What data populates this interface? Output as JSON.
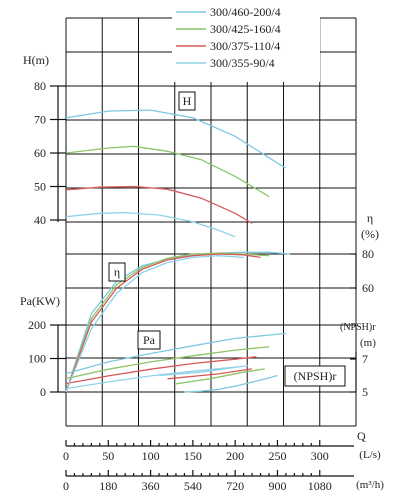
{
  "chart_data": {
    "type": "line",
    "legend": {
      "position": "top-right",
      "entries": [
        {
          "name": "300/460-200/4",
          "color": "#7ec9df"
        },
        {
          "name": "300/425-160/4",
          "color": "#8ec46a"
        },
        {
          "name": "300/375-110/4",
          "color": "#d55a5a"
        },
        {
          "name": "300/355-90/4",
          "color": "#8fd2e8"
        }
      ]
    },
    "x_axis": {
      "label": "Q",
      "unit_ls": "(L/s)",
      "unit_m3h": "(m³/h)",
      "ticks_ls": [
        0,
        50,
        100,
        150,
        200,
        250,
        300
      ],
      "ticks_m3h": [
        "0",
        "180",
        "360",
        "540",
        "720",
        "900",
        "1080"
      ],
      "range": [
        0,
        300
      ]
    },
    "h_axis": {
      "label": "H(m)",
      "range": [
        30,
        80
      ],
      "ticks": [
        40,
        50,
        60,
        70,
        80
      ],
      "panel_label": "H"
    },
    "eta_axis": {
      "label": "η",
      "unit": "(%)",
      "ticks": [
        60,
        80
      ],
      "range": [
        50,
        90
      ],
      "panel_label": "η"
    },
    "pa_axis": {
      "label": "Pa(KW)",
      "range": [
        0,
        200
      ],
      "ticks": [
        0,
        100,
        200
      ],
      "panel_label": "Pa"
    },
    "npsh_axis": {
      "label": "(NPSH)r",
      "unit": "(m)",
      "ticks": [
        5,
        7
      ],
      "range": [
        4.5,
        7.5
      ],
      "panel_label": "(NPSH)r"
    },
    "series": [
      {
        "name": "300/460-200/4",
        "color": "#7ec9df",
        "H": [
          [
            0,
            70.5
          ],
          [
            50,
            72.5
          ],
          [
            100,
            72.8
          ],
          [
            150,
            70.5
          ],
          [
            200,
            65
          ],
          [
            250,
            57
          ],
          [
            260,
            55.5
          ]
        ],
        "eta": [
          [
            0,
            0
          ],
          [
            30,
            45
          ],
          [
            60,
            64
          ],
          [
            90,
            73
          ],
          [
            120,
            77
          ],
          [
            150,
            79.5
          ],
          [
            180,
            80.5
          ],
          [
            210,
            81
          ],
          [
            240,
            81
          ],
          [
            265,
            80
          ]
        ],
        "Pa": [
          [
            0,
            55
          ],
          [
            50,
            90
          ],
          [
            100,
            115
          ],
          [
            150,
            138
          ],
          [
            200,
            160
          ],
          [
            260,
            175
          ]
        ],
        "NPSH": [
          [
            140,
            5.0
          ],
          [
            160,
            5.05
          ],
          [
            180,
            5.15
          ],
          [
            200,
            5.35
          ],
          [
            220,
            5.6
          ],
          [
            240,
            5.85
          ],
          [
            250,
            6.0
          ]
        ]
      },
      {
        "name": "300/425-160/4",
        "color": "#8ec46a",
        "H": [
          [
            0,
            60
          ],
          [
            50,
            61.5
          ],
          [
            80,
            62
          ],
          [
            120,
            60.5
          ],
          [
            160,
            58
          ],
          [
            200,
            53
          ],
          [
            240,
            47
          ]
        ],
        "eta": [
          [
            0,
            0
          ],
          [
            30,
            42
          ],
          [
            60,
            62
          ],
          [
            90,
            72
          ],
          [
            120,
            77.5
          ],
          [
            150,
            80
          ],
          [
            180,
            80.5
          ],
          [
            210,
            80
          ],
          [
            240,
            79
          ]
        ],
        "Pa": [
          [
            0,
            40
          ],
          [
            50,
            68
          ],
          [
            100,
            90
          ],
          [
            150,
            108
          ],
          [
            200,
            125
          ],
          [
            240,
            135
          ]
        ],
        "NPSH": [
          [
            130,
            5.5
          ],
          [
            170,
            5.8
          ],
          [
            210,
            6.2
          ],
          [
            235,
            6.4
          ]
        ]
      },
      {
        "name": "300/375-110/4",
        "color": "#d55a5a",
        "H": [
          [
            0,
            49
          ],
          [
            40,
            49.8
          ],
          [
            80,
            50
          ],
          [
            120,
            49.2
          ],
          [
            160,
            46.5
          ],
          [
            200,
            42
          ],
          [
            220,
            39
          ]
        ],
        "eta": [
          [
            0,
            0
          ],
          [
            30,
            40
          ],
          [
            60,
            60
          ],
          [
            90,
            71
          ],
          [
            120,
            76.5
          ],
          [
            150,
            79
          ],
          [
            180,
            80
          ],
          [
            210,
            79.5
          ],
          [
            230,
            78
          ]
        ],
        "Pa": [
          [
            0,
            25
          ],
          [
            50,
            48
          ],
          [
            100,
            68
          ],
          [
            150,
            85
          ],
          [
            200,
            98
          ],
          [
            225,
            105
          ]
        ],
        "NPSH": [
          [
            120,
            5.8
          ],
          [
            180,
            6.1
          ],
          [
            220,
            6.4
          ]
        ]
      },
      {
        "name": "300/355-90/4",
        "color": "#8fd2e8",
        "H": [
          [
            0,
            41
          ],
          [
            40,
            42
          ],
          [
            70,
            42.2
          ],
          [
            110,
            41.5
          ],
          [
            150,
            39.5
          ],
          [
            180,
            37
          ],
          [
            200,
            35
          ]
        ],
        "eta": [
          [
            0,
            0
          ],
          [
            30,
            36
          ],
          [
            60,
            57
          ],
          [
            90,
            69
          ],
          [
            120,
            75
          ],
          [
            150,
            78
          ],
          [
            180,
            79
          ],
          [
            210,
            78
          ]
        ],
        "Pa": [
          [
            0,
            10
          ],
          [
            50,
            30
          ],
          [
            100,
            48
          ],
          [
            150,
            62
          ],
          [
            200,
            74
          ],
          [
            215,
            78
          ]
        ],
        "NPSH": [
          [
            110,
            6.0
          ],
          [
            160,
            6.2
          ],
          [
            200,
            6.5
          ]
        ]
      }
    ]
  }
}
